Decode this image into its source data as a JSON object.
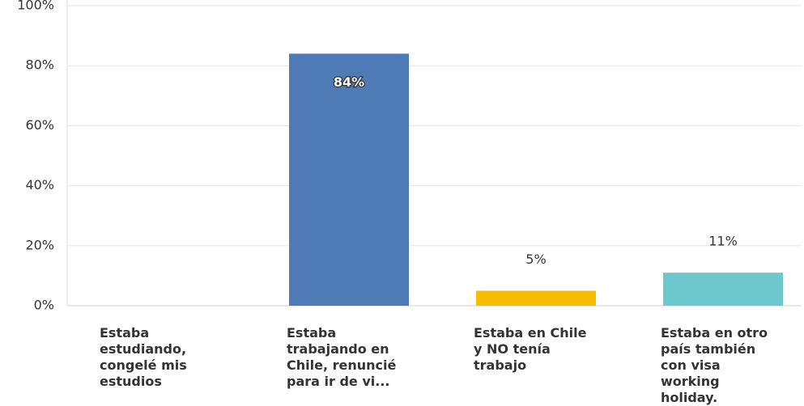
{
  "chart_data": {
    "type": "bar",
    "categories": [
      "Estaba estudiando, congelé mis estudios",
      "Estaba trabajando en Chile, renuncié para ir de vi...",
      "Estaba en Chile y NO tenía trabajo",
      "Estaba en otro país también con visa working holiday."
    ],
    "values": [
      0,
      84,
      5,
      11
    ],
    "value_labels": [
      null,
      "84%",
      "5%",
      "11%"
    ],
    "colors": [
      "#4e7bb5",
      "#4e7bb5",
      "#f5be00",
      "#6cc8cc"
    ],
    "ylim": [
      0,
      100
    ],
    "yticks": [
      {
        "value": 0,
        "label": "0%"
      },
      {
        "value": 20,
        "label": "20%"
      },
      {
        "value": 40,
        "label": "40%"
      },
      {
        "value": 60,
        "label": "60%"
      },
      {
        "value": 80,
        "label": "80%"
      },
      {
        "value": 100,
        "label": "100%"
      }
    ],
    "grid": true
  }
}
